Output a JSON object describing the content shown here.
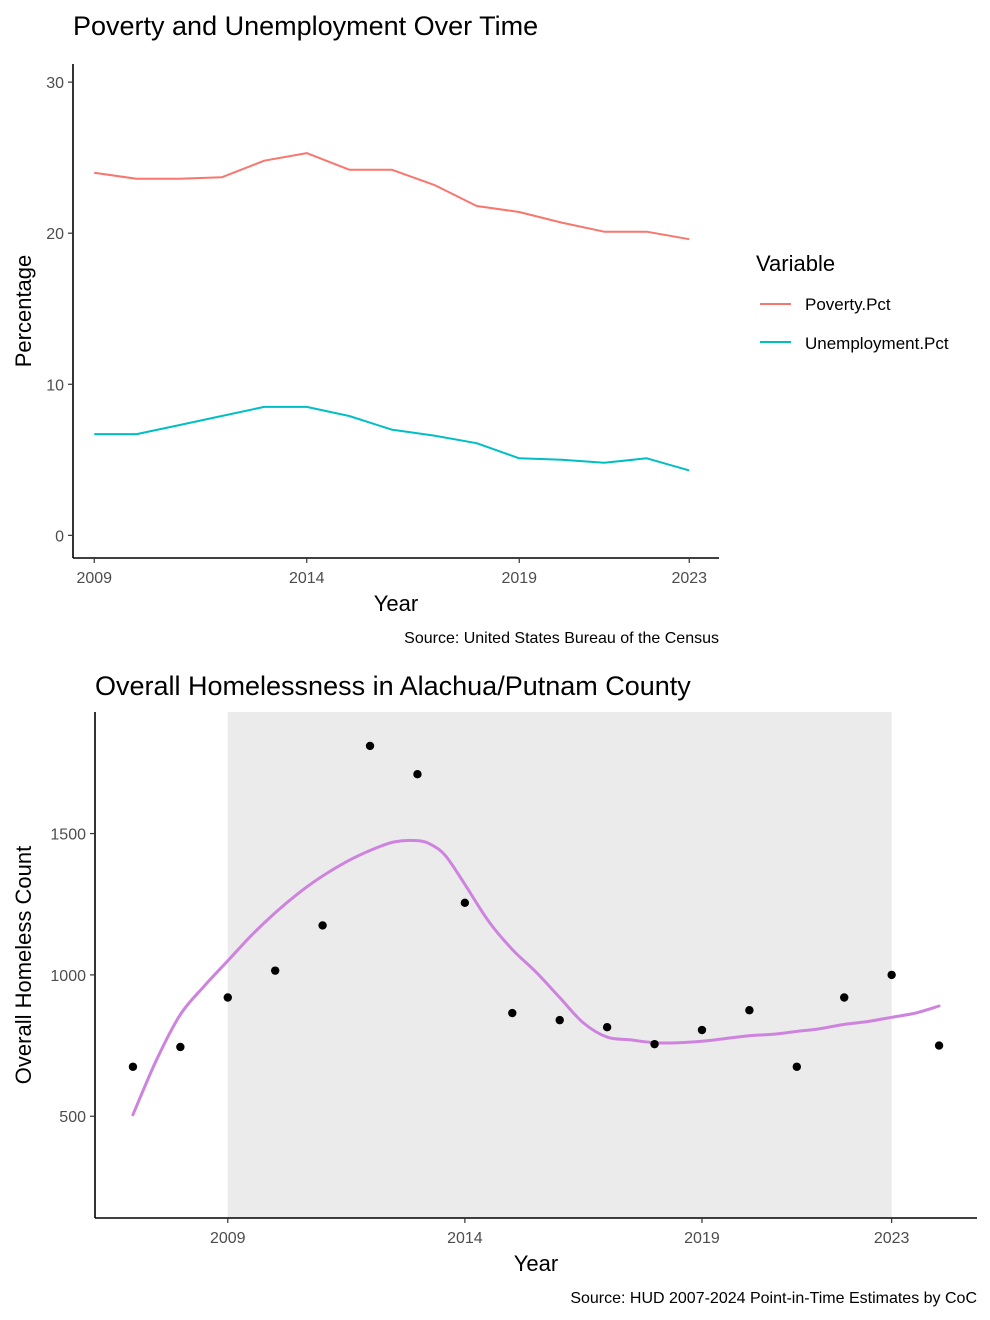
{
  "chart_data": [
    {
      "type": "line",
      "title": "Poverty and Unemployment Over Time",
      "xlabel": "Year",
      "ylabel": "Percentage",
      "caption": "Source: United States Bureau of the Census",
      "xlim": [
        2008.5,
        2023.7
      ],
      "ylim": [
        -1.5,
        31.2
      ],
      "x_ticks": [
        2009,
        2014,
        2019,
        2023
      ],
      "y_ticks": [
        0,
        10,
        20,
        30
      ],
      "grid": false,
      "legend": {
        "title": "Variable",
        "placement": "right",
        "entries": [
          "Poverty.Pct",
          "Unemployment.Pct"
        ]
      },
      "x": [
        2009,
        2010,
        2011,
        2012,
        2013,
        2014,
        2015,
        2016,
        2017,
        2018,
        2019,
        2020,
        2021,
        2022,
        2023
      ],
      "series": [
        {
          "name": "Poverty.Pct",
          "color": "#F8766D",
          "values": [
            24.0,
            23.6,
            23.6,
            23.7,
            24.8,
            25.3,
            24.2,
            24.2,
            23.2,
            21.8,
            21.4,
            20.7,
            20.1,
            20.1,
            19.6
          ]
        },
        {
          "name": "Unemployment.Pct",
          "color": "#00BFC4",
          "values": [
            6.7,
            6.7,
            7.3,
            7.9,
            8.5,
            8.5,
            7.9,
            7.0,
            6.6,
            6.1,
            5.1,
            5.0,
            4.8,
            5.1,
            4.3
          ]
        }
      ]
    },
    {
      "type": "scatter",
      "title": "Overall Homelessness in Alachua/Putnam County",
      "xlabel": "Year",
      "ylabel": "Overall Homeless Count",
      "caption": "Source: HUD 2007-2024 Point-in-Time Estimates by CoC",
      "xlim": [
        2006.2,
        2024.8
      ],
      "ylim": [
        140,
        1930
      ],
      "x_ticks": [
        2009,
        2014,
        2019,
        2023
      ],
      "y_ticks": [
        500,
        1000,
        1500
      ],
      "grid": false,
      "shaded_region": {
        "x_start": 2009,
        "x_end": 2023,
        "color": "#ebebeb"
      },
      "points": {
        "color": "#000000",
        "x": [
          2007,
          2008,
          2009,
          2010,
          2011,
          2012,
          2013,
          2014,
          2015,
          2016,
          2017,
          2018,
          2019,
          2020,
          2021,
          2022,
          2023,
          2024
        ],
        "y": [
          675,
          745,
          920,
          1015,
          1175,
          1810,
          1710,
          1255,
          865,
          840,
          815,
          755,
          805,
          875,
          675,
          920,
          1000,
          750
        ]
      },
      "smooth": {
        "color": "#CE84DE",
        "x": [
          2007,
          2007.5,
          2008,
          2008.5,
          2009,
          2009.5,
          2010,
          2010.5,
          2011,
          2011.5,
          2012,
          2012.5,
          2013,
          2013.3,
          2013.6,
          2014,
          2014.5,
          2015,
          2015.5,
          2016,
          2016.5,
          2017,
          2017.5,
          2018,
          2018.5,
          2019,
          2019.5,
          2020,
          2020.5,
          2021,
          2021.5,
          2022,
          2022.5,
          2023,
          2023.5,
          2024
        ],
        "y": [
          505,
          700,
          860,
          960,
          1050,
          1140,
          1220,
          1290,
          1350,
          1400,
          1440,
          1470,
          1475,
          1460,
          1420,
          1320,
          1190,
          1090,
          1010,
          920,
          830,
          780,
          770,
          760,
          760,
          765,
          775,
          785,
          790,
          800,
          810,
          825,
          835,
          850,
          865,
          890
        ]
      }
    }
  ]
}
